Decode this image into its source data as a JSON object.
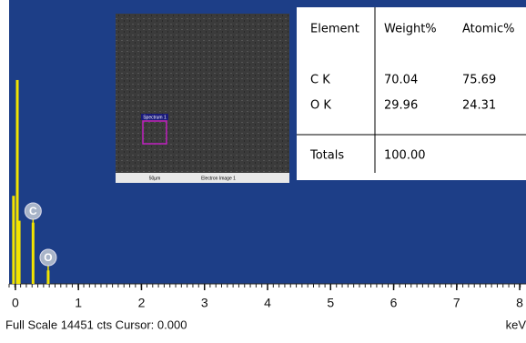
{
  "chart_data": {
    "type": "bar",
    "x": [
      -0.03,
      0.03,
      0.06,
      0.28,
      0.52
    ],
    "values": [
      4600,
      10650,
      3300,
      3200,
      700
    ],
    "color": "#f2e400",
    "xlim": [
      -0.1,
      8.1
    ],
    "ylim": [
      0,
      14451
    ],
    "xticks": [
      0,
      1,
      2,
      3,
      4,
      5,
      6,
      7,
      8
    ],
    "x_unit": "keV",
    "footer": "Full Scale 14451 cts Cursor: 0.000",
    "peak_labels": [
      {
        "text": "C",
        "x": 0.28
      },
      {
        "text": "O",
        "x": 0.52
      }
    ]
  },
  "table": {
    "header": [
      "Element",
      "Weight%",
      "Atomic%"
    ],
    "rows": [
      [
        "C K",
        "70.04",
        "75.69"
      ],
      [
        "O K",
        "29.96",
        "24.31"
      ]
    ],
    "totals": [
      "Totals",
      "100.00"
    ]
  },
  "image": {
    "label": "Spectrum 1",
    "scale": "50µm",
    "caption": "Electron Image 1"
  }
}
